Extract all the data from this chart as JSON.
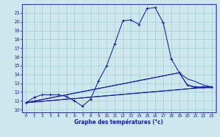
{
  "bg_color": "#cce8ec",
  "grid_color": "#a0ccd4",
  "line_color": "#1a1aaa",
  "xlabel": "Graphe des températures (°c)",
  "xlim": [
    -0.5,
    23.5
  ],
  "ylim": [
    9.7,
    22.0
  ],
  "yticks": [
    10,
    11,
    12,
    13,
    14,
    15,
    16,
    17,
    18,
    19,
    20,
    21
  ],
  "xticks": [
    0,
    1,
    2,
    3,
    4,
    5,
    6,
    7,
    8,
    9,
    10,
    11,
    12,
    13,
    14,
    15,
    16,
    17,
    18,
    19,
    20,
    21,
    22,
    23
  ],
  "main_x": [
    0,
    1,
    2,
    3,
    4,
    5,
    6,
    7,
    8,
    9,
    10,
    11,
    12,
    13,
    14,
    15,
    16,
    17,
    18,
    19,
    20,
    21,
    22,
    23
  ],
  "main_y": [
    10.8,
    11.4,
    11.7,
    11.7,
    11.7,
    11.5,
    11.0,
    10.4,
    11.2,
    13.3,
    15.0,
    17.5,
    20.1,
    20.2,
    19.7,
    21.5,
    21.6,
    19.9,
    15.8,
    14.2,
    12.8,
    12.6,
    12.6,
    12.6
  ],
  "fan_lines": [
    {
      "x": [
        0,
        23
      ],
      "y": [
        10.8,
        12.6
      ]
    },
    {
      "x": [
        0,
        23
      ],
      "y": [
        10.8,
        12.6
      ]
    },
    {
      "x": [
        0,
        19,
        20,
        21,
        22,
        23
      ],
      "y": [
        10.8,
        14.2,
        12.8,
        12.5,
        12.5,
        12.5
      ]
    },
    {
      "x": [
        0,
        19,
        20,
        21,
        22,
        23
      ],
      "y": [
        10.8,
        14.2,
        13.5,
        13.2,
        12.8,
        12.6
      ]
    }
  ]
}
